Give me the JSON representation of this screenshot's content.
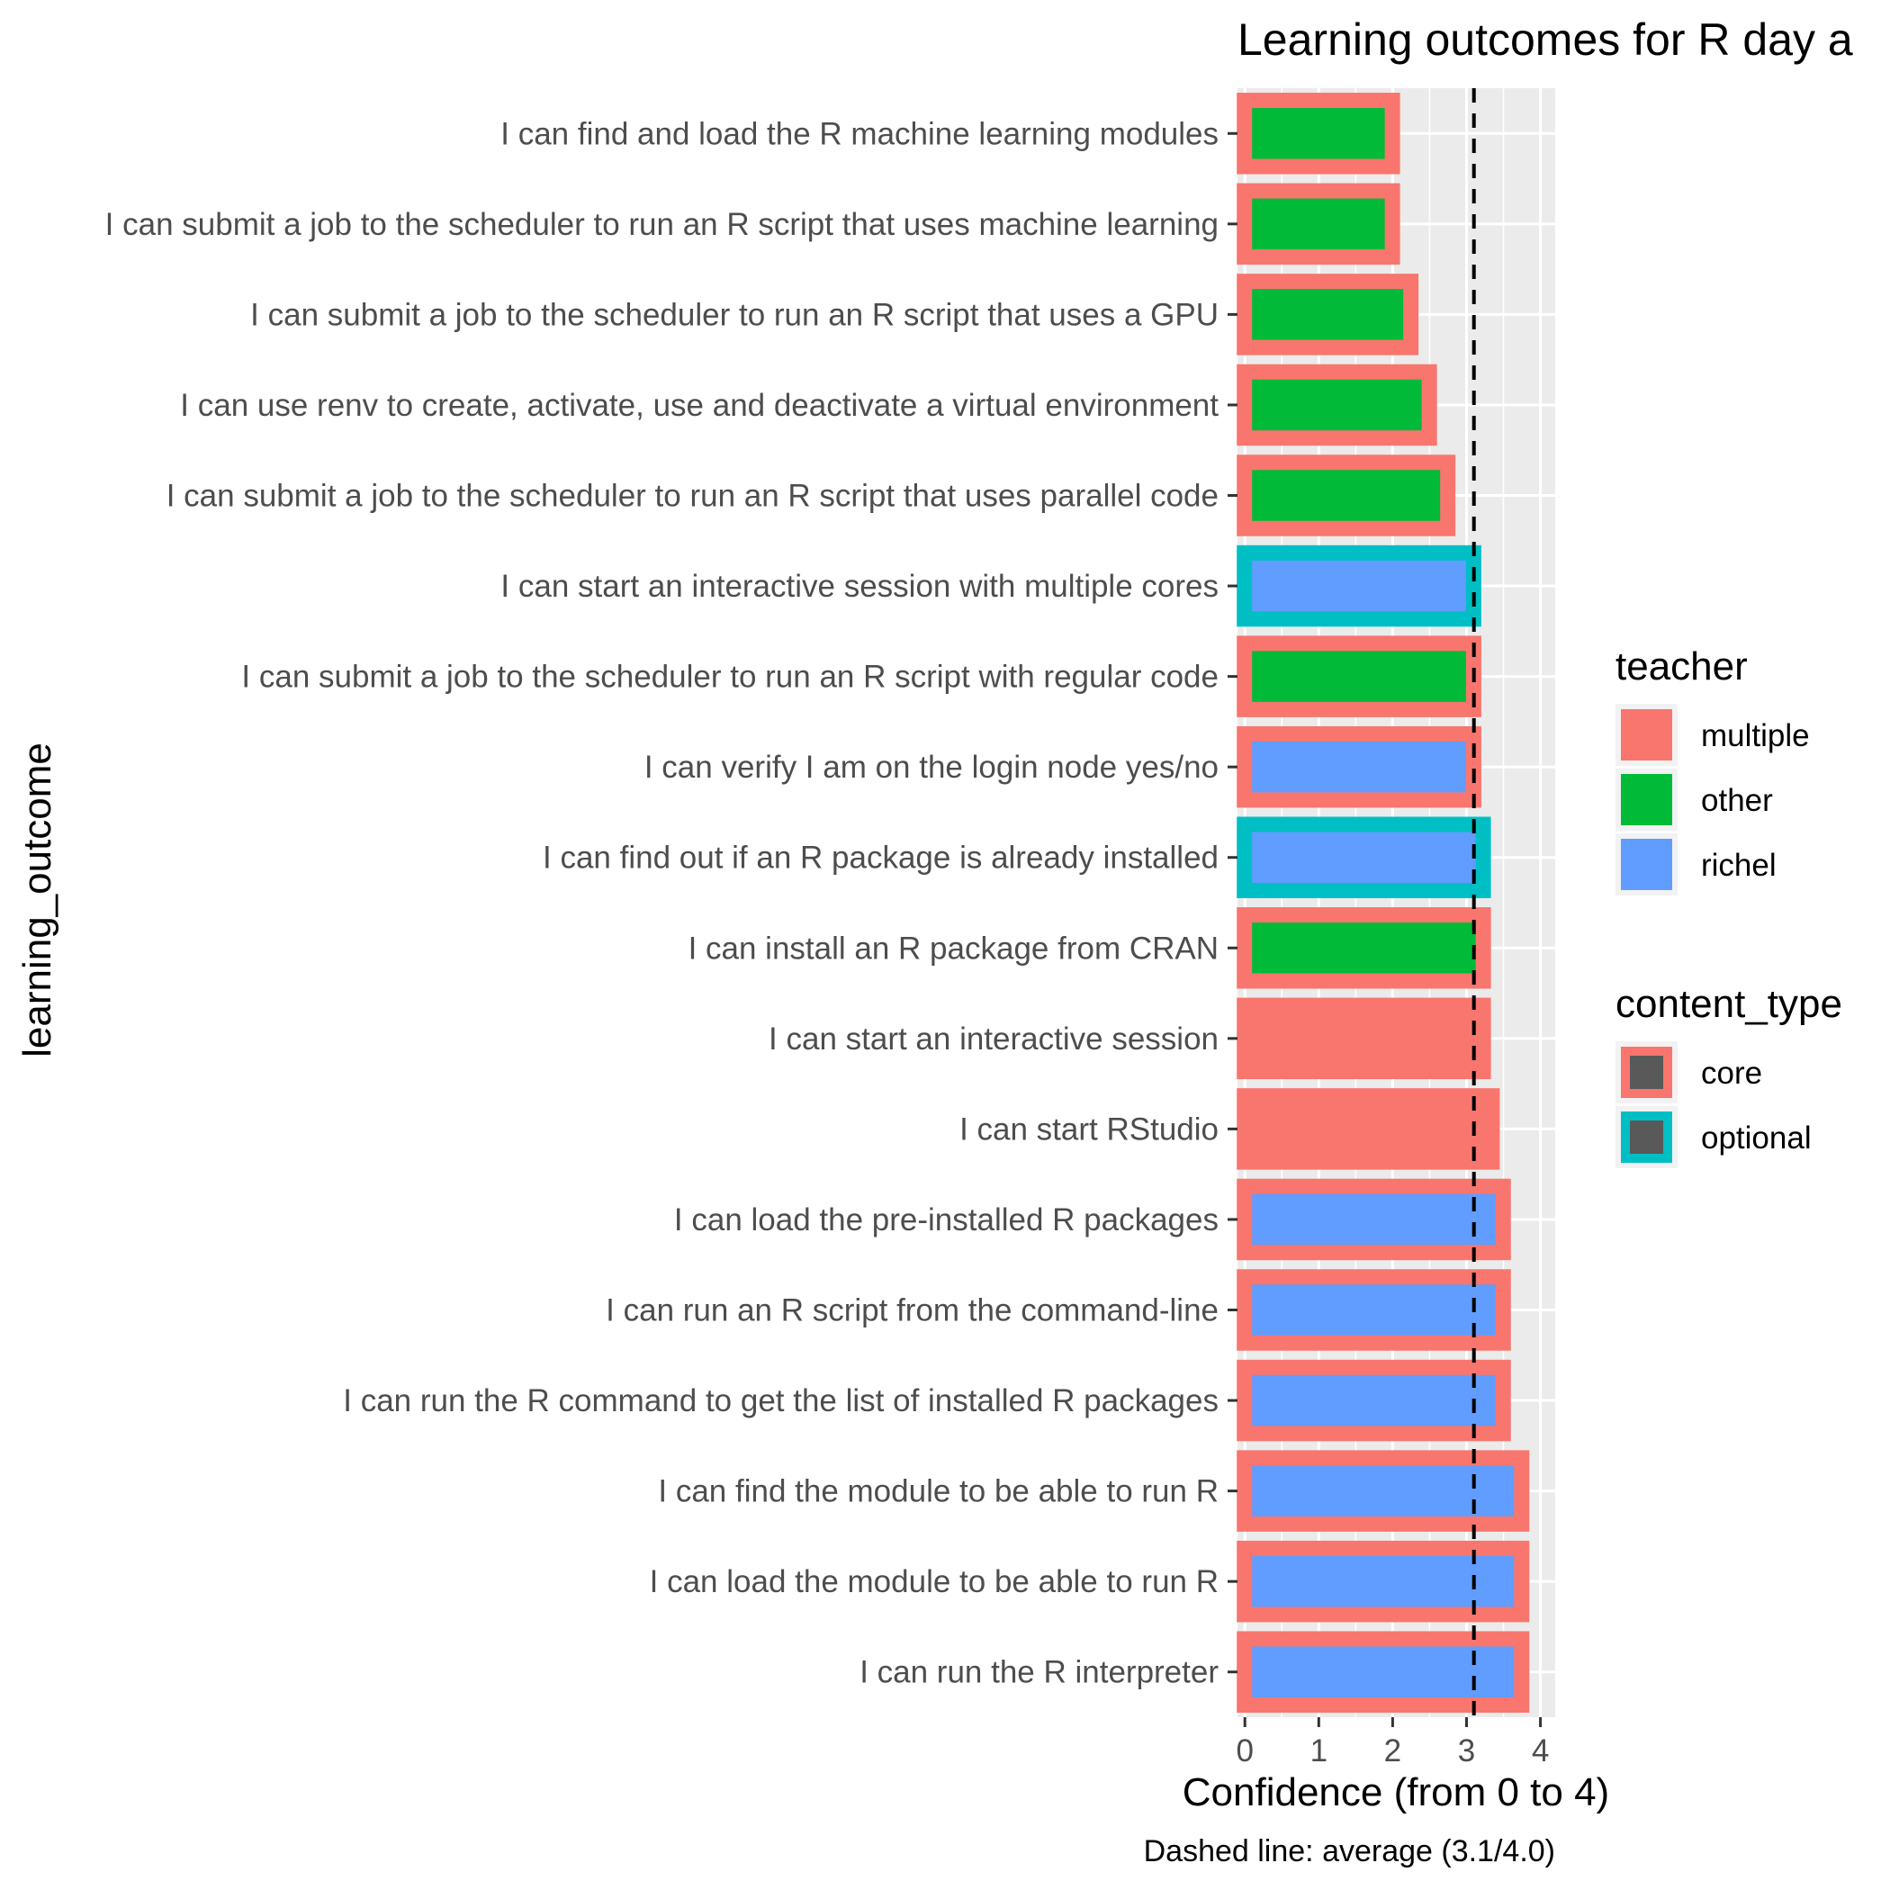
{
  "chart_data": {
    "type": "bar",
    "orientation": "horizontal",
    "title": "Learning outcomes for R day a",
    "xlabel": "Confidence (from 0 to 4)",
    "ylabel": "learning_outcome",
    "caption": "Dashed line: average (3.1/4.0)",
    "xlim": [
      0,
      4
    ],
    "x_ticks": [
      "0",
      "1",
      "2",
      "3",
      "4"
    ],
    "average_line": 3.1,
    "grid": true,
    "legend_placement": "right",
    "colors": {
      "multiple": "#F8766D",
      "other": "#00BA38",
      "richel": "#619CFF",
      "core": "#F8766D",
      "optional": "#00BFC4",
      "panel": "#EBEBEB",
      "grid": "#FFFFFF"
    },
    "categories": [
      "I can find and load the R machine learning modules",
      "I can submit a job to the scheduler to run an R script that uses machine learning",
      "I can submit a job to the scheduler to run an R script that uses a GPU",
      "I can use renv to create, activate, use and deactivate a virtual environment",
      "I can submit a job to the scheduler to run an R script that uses parallel code",
      "I can start an interactive session with multiple cores",
      "I can submit a job to the scheduler to run an R script with regular code",
      "I can verify I am on the login node yes/no",
      "I can find out if an R package is already installed",
      "I can install an R package from CRAN",
      "I can start an interactive session",
      "I can start RStudio",
      "I can load the pre-installed R packages",
      "I can run an R script from the command-line",
      "I can run the R command to get the list of installed R packages",
      "I can find the module to be able to run R",
      "I can load the module to be able to run R",
      "I can run the R interpreter"
    ],
    "values": [
      2.1,
      2.1,
      2.35,
      2.6,
      2.85,
      3.2,
      3.2,
      3.2,
      3.33,
      3.33,
      3.33,
      3.45,
      3.6,
      3.6,
      3.6,
      3.85,
      3.85,
      3.85
    ],
    "teacher": [
      "other",
      "other",
      "other",
      "other",
      "other",
      "richel",
      "other",
      "richel",
      "richel",
      "other",
      "multiple",
      "multiple",
      "richel",
      "richel",
      "richel",
      "richel",
      "richel",
      "richel"
    ],
    "content_type": [
      "core",
      "core",
      "core",
      "core",
      "core",
      "optional",
      "core",
      "core",
      "optional",
      "core",
      "core",
      "core",
      "core",
      "core",
      "core",
      "core",
      "core",
      "core"
    ],
    "legends": [
      {
        "title": "teacher",
        "items": [
          {
            "label": "multiple",
            "fill": "#F8766D",
            "border": "#F8766D"
          },
          {
            "label": "other",
            "fill": "#00BA38",
            "border": "#00BA38"
          },
          {
            "label": "richel",
            "fill": "#619CFF",
            "border": "#619CFF"
          }
        ]
      },
      {
        "title": "content_type",
        "items": [
          {
            "label": "core",
            "fill": "#595959",
            "border": "#F8766D"
          },
          {
            "label": "optional",
            "fill": "#595959",
            "border": "#00BFC4"
          }
        ]
      }
    ]
  }
}
